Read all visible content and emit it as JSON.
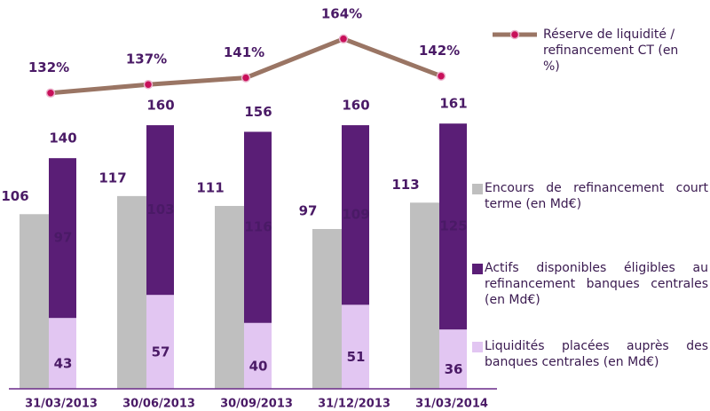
{
  "chart_data": {
    "type": "bar",
    "categories": [
      "31/03/2013",
      "30/06/2013",
      "30/09/2013",
      "31/12/2013",
      "31/03/2014"
    ],
    "series": [
      {
        "name": "Réserve de liquidité / refinancement CT (en %)",
        "type": "line",
        "axis": "y2",
        "color": "#9a7564",
        "marker_color": "#c8105a",
        "values": [
          132,
          137,
          141,
          164,
          142
        ],
        "value_labels": [
          "132%",
          "137%",
          "141%",
          "164%",
          "142%"
        ]
      },
      {
        "name": "Encours de refinancement court terme (en Md€)",
        "type": "bar",
        "color": "#bfbfbf",
        "values": [
          106,
          117,
          111,
          97,
          113
        ]
      },
      {
        "name": "Actifs disponibles éligibles au refinancement banques centrales (en Md€)",
        "type": "bar",
        "stack": "reserve",
        "color": "#5a1e76",
        "values": [
          97,
          103,
          116,
          109,
          125
        ]
      },
      {
        "name": "Liquidités placées auprès des banques centrales (en Md€)",
        "type": "bar",
        "stack": "reserve",
        "color": "#e2c6f2",
        "values": [
          43,
          57,
          40,
          51,
          36
        ]
      }
    ],
    "stack_totals": [
      140,
      160,
      156,
      160,
      161
    ],
    "ylim": [
      0,
      236
    ],
    "y2lim": [
      -43,
      187
    ]
  }
}
